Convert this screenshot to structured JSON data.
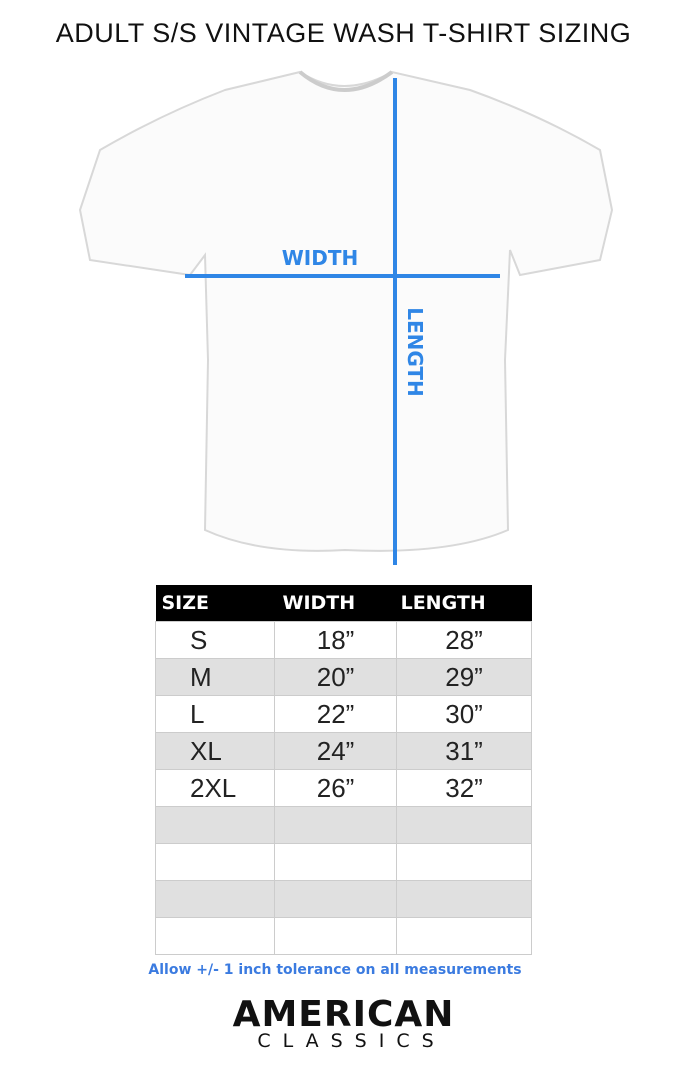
{
  "title": "ADULT S/S VINTAGE WASH T-SHIRT SIZING",
  "diagram": {
    "width_label": "WIDTH",
    "length_label": "LENGTH",
    "measure_color": "#2f86e6",
    "shirt_color": "#ffffff"
  },
  "table": {
    "headers": [
      "SIZE",
      "WIDTH",
      "LENGTH"
    ],
    "rows": [
      [
        "S",
        "18”",
        "28”"
      ],
      [
        "M",
        "20”",
        "29”"
      ],
      [
        "L",
        "22”",
        "30”"
      ],
      [
        "XL",
        "24”",
        "31”"
      ],
      [
        "2XL",
        "26”",
        "32”"
      ],
      [
        "",
        "",
        ""
      ],
      [
        "",
        "",
        ""
      ],
      [
        "",
        "",
        ""
      ],
      [
        "",
        "",
        ""
      ]
    ]
  },
  "note": "Allow +/- 1 inch tolerance on all measurements",
  "brand": {
    "line1": "AMERICAN",
    "line2": "CLASSICS"
  }
}
